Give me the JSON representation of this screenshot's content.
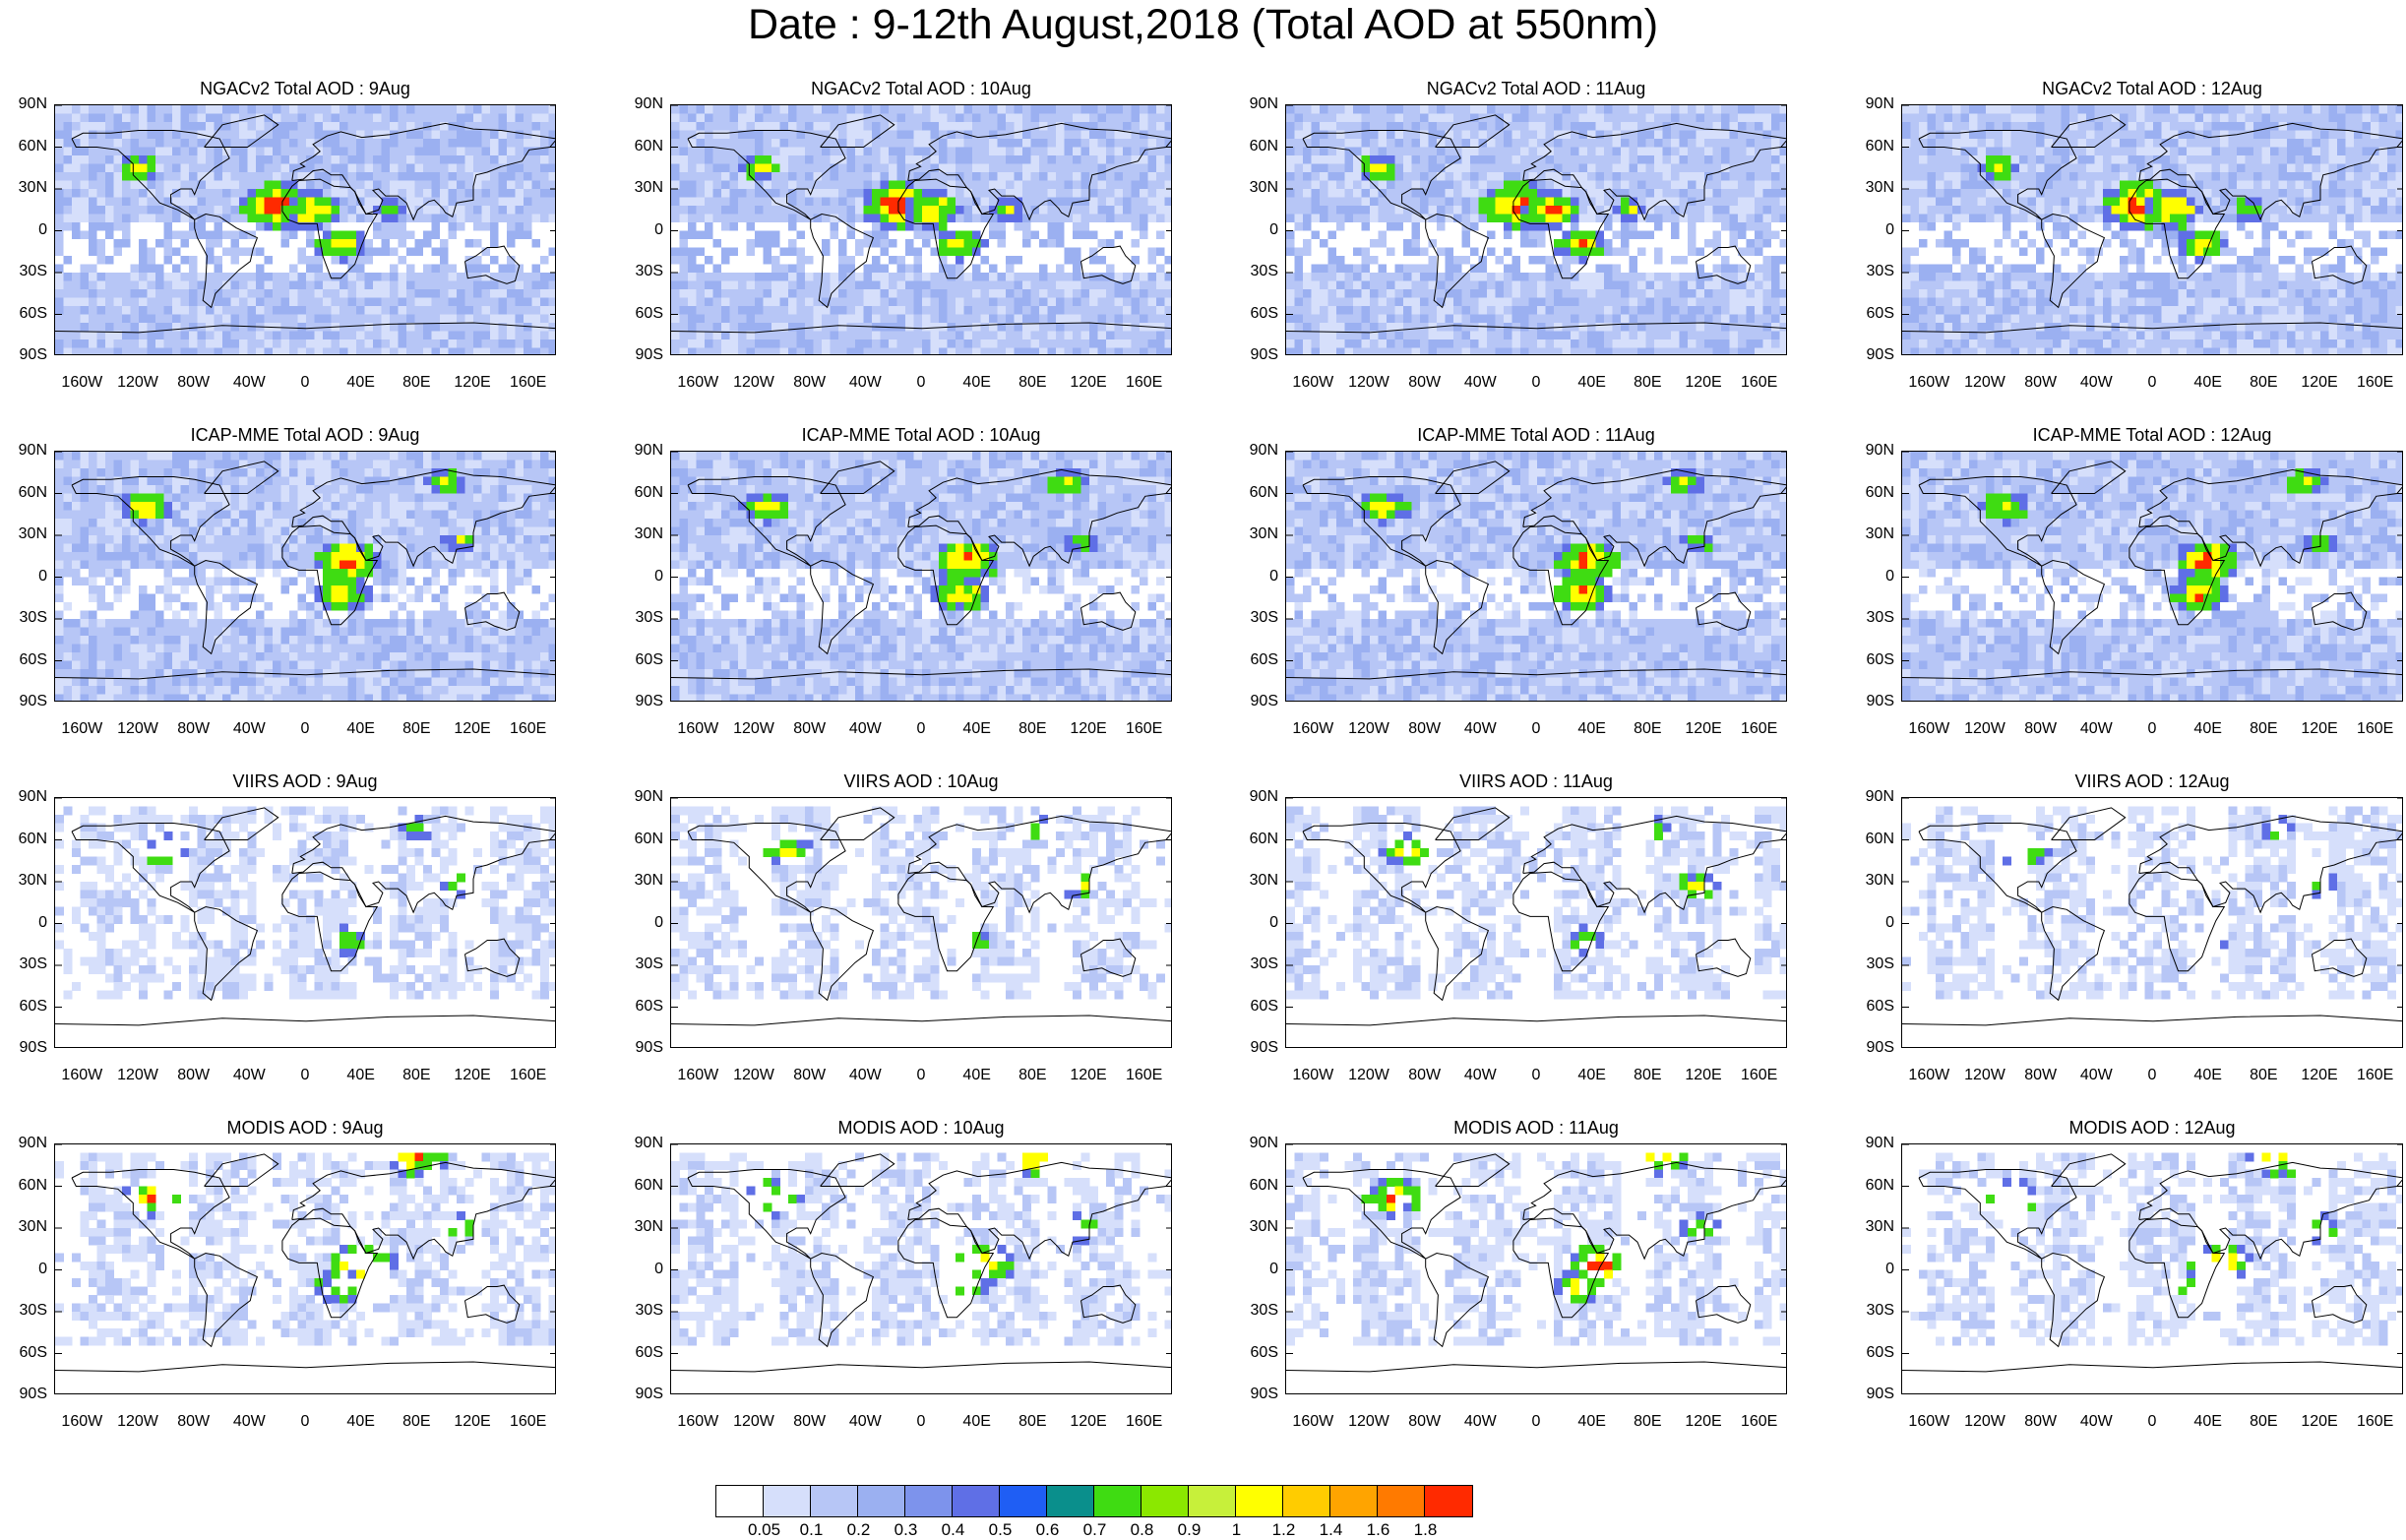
{
  "title": "Date : 9-12th August,2018 (Total AOD at 550nm)",
  "lat_labels": [
    "90N",
    "60N",
    "30N",
    "0",
    "30S",
    "60S",
    "90S"
  ],
  "lon_labels": [
    "160W",
    "120W",
    "80W",
    "40W",
    "0",
    "40E",
    "80E",
    "120E",
    "160E"
  ],
  "rows": [
    {
      "id": "ngac",
      "kind": "model",
      "panels": [
        "NGACv2 Total AOD : 9Aug",
        "NGACv2 Total AOD : 10Aug",
        "NGACv2 Total AOD : 11Aug",
        "NGACv2 Total AOD : 12Aug"
      ]
    },
    {
      "id": "icap",
      "kind": "model",
      "panels": [
        "ICAP-MME Total AOD : 9Aug",
        "ICAP-MME Total AOD : 10Aug",
        "ICAP-MME Total AOD : 11Aug",
        "ICAP-MME Total AOD : 12Aug"
      ]
    },
    {
      "id": "viirs",
      "kind": "satellite",
      "panels": [
        "VIIRS AOD : 9Aug",
        "VIIRS AOD : 10Aug",
        "VIIRS AOD : 11Aug",
        "VIIRS AOD : 12Aug"
      ]
    },
    {
      "id": "modis",
      "kind": "satellite",
      "panels": [
        "MODIS AOD : 9Aug",
        "MODIS AOD : 10Aug",
        "MODIS AOD : 11Aug",
        "MODIS AOD : 12Aug"
      ]
    }
  ],
  "colorbar": {
    "labels": [
      "0.05",
      "0.1",
      "0.2",
      "0.3",
      "0.4",
      "0.5",
      "0.6",
      "0.7",
      "0.8",
      "0.9",
      "1",
      "1.2",
      "1.4",
      "1.6",
      "1.8"
    ],
    "colors": [
      "#ffffff",
      "#d6dffb",
      "#b7c6f6",
      "#9bb0f1",
      "#7d93ec",
      "#5f6fe6",
      "#1f5ef4",
      "#0a8f8c",
      "#3fdc12",
      "#8be800",
      "#c7f03a",
      "#ffff00",
      "#ffcc00",
      "#ffa400",
      "#ff7a00",
      "#ff2a00"
    ]
  }
}
